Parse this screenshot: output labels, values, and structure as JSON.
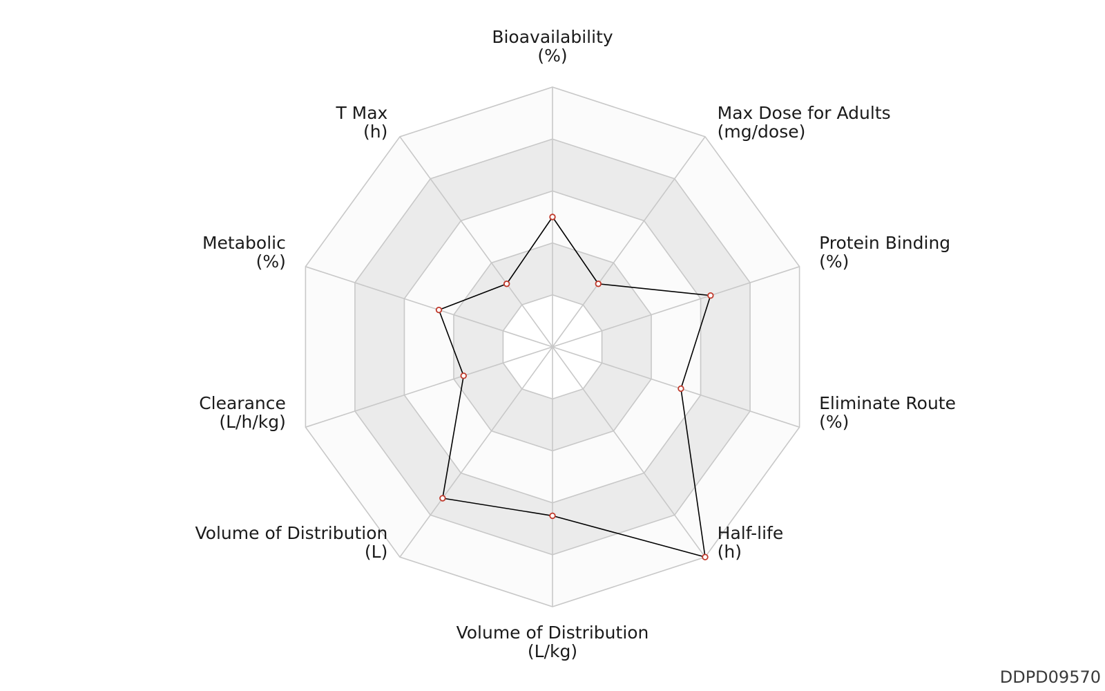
{
  "chart_data": {
    "type": "radar",
    "axes": [
      {
        "name": "Bioavailability",
        "unit": "(%)",
        "value": 0.5
      },
      {
        "name": "Max Dose for Adults",
        "unit": "(mg/dose)",
        "value": 0.3
      },
      {
        "name": "Protein Binding",
        "unit": "(%)",
        "value": 0.64
      },
      {
        "name": "Eliminate Route",
        "unit": "(%)",
        "value": 0.52
      },
      {
        "name": "Half-life",
        "unit": "(h)",
        "value": 1.0
      },
      {
        "name": "Volume of Distribution",
        "unit": "(L/kg)",
        "value": 0.65
      },
      {
        "name": "Volume of Distribution",
        "unit": "(L)",
        "value": 0.72
      },
      {
        "name": "Clearance",
        "unit": "(L/h/kg)",
        "value": 0.36
      },
      {
        "name": "Metabolic",
        "unit": "(%)",
        "value": 0.46
      },
      {
        "name": "T Max",
        "unit": "(h)",
        "value": 0.3
      }
    ],
    "rings": 5,
    "range": [
      0,
      1
    ],
    "grid": true,
    "colors": {
      "line": "#000000",
      "marker_edge": "#c0392b",
      "marker_fill": "#ffffff",
      "grid": "#c8c8c8",
      "band_shaded": "#ebebeb",
      "band_light": "#fbfbfb"
    }
  },
  "watermark": "DDPD09570"
}
